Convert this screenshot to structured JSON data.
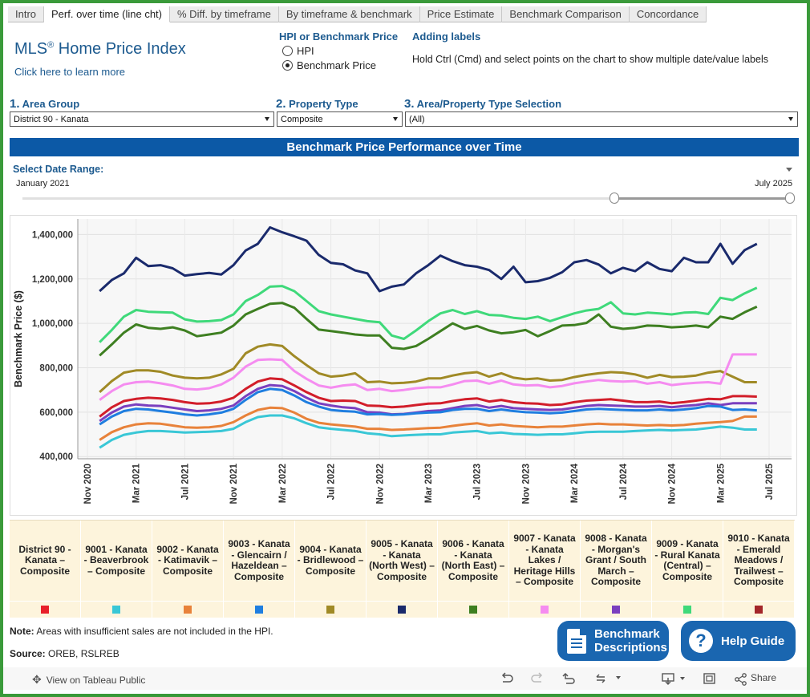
{
  "tabs": [
    {
      "label": "Intro",
      "active": false
    },
    {
      "label": "Perf. over time (line cht)",
      "active": true
    },
    {
      "label": "% Diff. by timeframe",
      "active": false
    },
    {
      "label": "By timeframe & benchmark",
      "active": false
    },
    {
      "label": "Price Estimate",
      "active": false
    },
    {
      "label": "Benchmark Comparison",
      "active": false
    },
    {
      "label": "Concordance",
      "active": false
    }
  ],
  "brand": {
    "title": "MLS",
    "reg": "®",
    "title_rest": " Home Price Index",
    "learn_more": "Click here to learn more"
  },
  "measure": {
    "header": "HPI or Benchmark Price",
    "opt_hpi": "HPI",
    "opt_bench": "Benchmark Price",
    "selected": "Benchmark Price"
  },
  "labels_help": {
    "header": "Adding labels",
    "text": "Hold Ctrl (Cmd) and select points on the chart to show multiple date/value labels"
  },
  "filters": {
    "area": {
      "num": "1.",
      "label": " Area Group",
      "value": "District 90 - Kanata"
    },
    "ptype": {
      "num": "2.",
      "label": " Property Type",
      "value": "Composite"
    },
    "sel": {
      "num": "3.",
      "label": " Area/Property Type Selection",
      "value": "(All)"
    }
  },
  "banner": "Benchmark Price Performance over Time",
  "date_range": {
    "label": "Select Date Range:",
    "start": "January 2021",
    "end": "July 2025"
  },
  "chart_data": {
    "type": "line",
    "title": "Benchmark Price Performance over Time",
    "ylabel": "Benchmark Price ($)",
    "xlabel": "",
    "ylim": [
      390000,
      1470000
    ],
    "yticks": [
      400000,
      600000,
      800000,
      1000000,
      1200000,
      1400000
    ],
    "ytick_labels": [
      "400,000",
      "600,000",
      "800,000",
      "1,000,000",
      "1,200,000",
      "1,400,000"
    ],
    "xtick_labels": [
      "Nov 2020",
      "Mar 2021",
      "Jul 2021",
      "Nov 2021",
      "Mar 2022",
      "Jul 2022",
      "Nov 2022",
      "Mar 2023",
      "Jul 2023",
      "Nov 2023",
      "Mar 2024",
      "Jul 2024",
      "Nov 2024",
      "Mar 2025",
      "Jul 2025"
    ],
    "xtick_months": [
      0,
      4,
      8,
      12,
      16,
      20,
      24,
      28,
      32,
      36,
      40,
      44,
      48,
      52,
      56
    ],
    "x_start": "2020-11",
    "months": 57,
    "series_months_start": 1,
    "series": [
      {
        "name": "9005 - Kanata - Kanata (North West) – Composite",
        "color": "#1a2a6c",
        "values": [
          1145000,
          1195000,
          1225000,
          1295000,
          1258000,
          1262000,
          1248000,
          1215000,
          1222000,
          1227000,
          1220000,
          1262000,
          1328000,
          1358000,
          1432000,
          1410000,
          1392000,
          1372000,
          1308000,
          1272000,
          1266000,
          1238000,
          1225000,
          1145000,
          1165000,
          1175000,
          1225000,
          1262000,
          1305000,
          1280000,
          1262000,
          1255000,
          1240000,
          1200000,
          1255000,
          1185000,
          1190000,
          1205000,
          1230000,
          1275000,
          1285000,
          1265000,
          1225000,
          1250000,
          1235000,
          1275000,
          1245000,
          1235000,
          1295000,
          1275000,
          1275000,
          1358000,
          1268000,
          1330000,
          1358000
        ]
      },
      {
        "name": "9009 - Kanata - Rural Kanata (Central) – Composite",
        "color": "#3fd97a",
        "values": [
          915000,
          970000,
          1030000,
          1060000,
          1052000,
          1050000,
          1048000,
          1018000,
          1008000,
          1010000,
          1015000,
          1040000,
          1100000,
          1128000,
          1165000,
          1168000,
          1145000,
          1100000,
          1055000,
          1040000,
          1030000,
          1020000,
          1010000,
          1005000,
          945000,
          930000,
          968000,
          1010000,
          1045000,
          1060000,
          1042000,
          1055000,
          1038000,
          1035000,
          1025000,
          1020000,
          1030000,
          1010000,
          1028000,
          1045000,
          1058000,
          1065000,
          1095000,
          1045000,
          1040000,
          1048000,
          1045000,
          1040000,
          1048000,
          1050000,
          1042000,
          1115000,
          1105000,
          1135000,
          1160000
        ]
      },
      {
        "name": "9006 - Kanata - Kanata (North East) – Composite",
        "color": "#3e7f21",
        "values": [
          855000,
          905000,
          958000,
          995000,
          980000,
          975000,
          982000,
          968000,
          942000,
          950000,
          958000,
          990000,
          1040000,
          1065000,
          1088000,
          1092000,
          1070000,
          1020000,
          972000,
          965000,
          958000,
          950000,
          945000,
          945000,
          890000,
          885000,
          898000,
          930000,
          965000,
          1000000,
          975000,
          988000,
          968000,
          955000,
          960000,
          970000,
          942000,
          965000,
          990000,
          992000,
          1002000,
          1040000,
          985000,
          975000,
          980000,
          990000,
          988000,
          982000,
          985000,
          990000,
          982000,
          1030000,
          1020000,
          1050000,
          1075000
        ]
      },
      {
        "name": "9004 - Kanata - Bridlewood – Composite",
        "color": "#a08a26",
        "values": [
          690000,
          740000,
          778000,
          788000,
          788000,
          782000,
          765000,
          755000,
          752000,
          755000,
          770000,
          795000,
          865000,
          895000,
          905000,
          898000,
          852000,
          812000,
          775000,
          760000,
          765000,
          775000,
          735000,
          738000,
          730000,
          732000,
          738000,
          752000,
          752000,
          765000,
          775000,
          780000,
          760000,
          775000,
          755000,
          748000,
          752000,
          742000,
          745000,
          758000,
          768000,
          775000,
          780000,
          778000,
          770000,
          755000,
          768000,
          758000,
          760000,
          765000,
          778000,
          785000,
          760000,
          735000,
          735000
        ]
      },
      {
        "name": "9007 - Kanata - Kanata Lakes / Heritage Hills – Composite",
        "color": "#f58cf0",
        "values": [
          655000,
          695000,
          725000,
          735000,
          738000,
          730000,
          720000,
          705000,
          702000,
          708000,
          725000,
          755000,
          805000,
          835000,
          838000,
          835000,
          785000,
          750000,
          720000,
          710000,
          720000,
          725000,
          700000,
          705000,
          695000,
          700000,
          708000,
          712000,
          712000,
          725000,
          740000,
          742000,
          728000,
          742000,
          725000,
          720000,
          722000,
          712000,
          718000,
          730000,
          738000,
          745000,
          740000,
          738000,
          740000,
          728000,
          735000,
          722000,
          728000,
          732000,
          735000,
          728000,
          860000,
          860000,
          860000
        ]
      },
      {
        "name": "9010 - Kanata - Emerald Meadows / Trailwest – Composite",
        "color": "#d21e2a",
        "values": [
          580000,
          622000,
          650000,
          660000,
          665000,
          662000,
          655000,
          645000,
          638000,
          640000,
          648000,
          665000,
          705000,
          738000,
          752000,
          748000,
          720000,
          690000,
          665000,
          650000,
          652000,
          650000,
          630000,
          628000,
          622000,
          625000,
          632000,
          638000,
          640000,
          650000,
          658000,
          662000,
          648000,
          655000,
          645000,
          640000,
          638000,
          632000,
          635000,
          645000,
          652000,
          655000,
          658000,
          652000,
          645000,
          645000,
          648000,
          640000,
          645000,
          652000,
          660000,
          658000,
          672000,
          672000,
          670000
        ]
      },
      {
        "name": "9008 - Kanata - Morgan's Grant / South March – Composite",
        "color": "#7a3fbf",
        "values": [
          560000,
          598000,
          625000,
          635000,
          630000,
          628000,
          620000,
          612000,
          605000,
          608000,
          615000,
          630000,
          672000,
          705000,
          722000,
          718000,
          695000,
          665000,
          640000,
          630000,
          622000,
          618000,
          600000,
          598000,
          590000,
          592000,
          598000,
          605000,
          608000,
          618000,
          628000,
          632000,
          620000,
          628000,
          618000,
          615000,
          612000,
          610000,
          612000,
          620000,
          628000,
          632000,
          630000,
          628000,
          625000,
          625000,
          628000,
          622000,
          628000,
          632000,
          640000,
          632000,
          640000,
          640000,
          640000
        ]
      },
      {
        "name": "9003 - Kanata - Glencairn / Hazeldean – Composite",
        "color": "#1f7ee0",
        "values": [
          545000,
          580000,
          605000,
          615000,
          612000,
          605000,
          598000,
          590000,
          585000,
          590000,
          598000,
          615000,
          655000,
          690000,
          705000,
          700000,
          675000,
          645000,
          625000,
          610000,
          605000,
          602000,
          590000,
          592000,
          588000,
          590000,
          595000,
          598000,
          600000,
          610000,
          615000,
          615000,
          605000,
          612000,
          605000,
          600000,
          598000,
          595000,
          598000,
          605000,
          612000,
          615000,
          612000,
          610000,
          608000,
          608000,
          612000,
          608000,
          612000,
          618000,
          628000,
          625000,
          610000,
          612000,
          608000
        ]
      },
      {
        "name": "9002 - Kanata - Katimavik – Composite",
        "color": "#e8823a",
        "values": [
          475000,
          510000,
          532000,
          545000,
          550000,
          548000,
          540000,
          532000,
          530000,
          532000,
          538000,
          555000,
          585000,
          610000,
          620000,
          618000,
          598000,
          570000,
          552000,
          545000,
          540000,
          535000,
          525000,
          525000,
          520000,
          522000,
          525000,
          528000,
          530000,
          538000,
          545000,
          550000,
          540000,
          545000,
          538000,
          535000,
          532000,
          535000,
          535000,
          540000,
          545000,
          548000,
          545000,
          545000,
          542000,
          540000,
          542000,
          540000,
          542000,
          548000,
          552000,
          555000,
          560000,
          580000,
          580000
        ]
      },
      {
        "name": "9001 - Kanata - Beaverbrook – Composite",
        "color": "#39c7d6",
        "values": [
          440000,
          475000,
          498000,
          508000,
          515000,
          515000,
          512000,
          508000,
          510000,
          512000,
          515000,
          525000,
          555000,
          578000,
          585000,
          585000,
          572000,
          550000,
          532000,
          525000,
          520000,
          515000,
          505000,
          500000,
          492000,
          495000,
          498000,
          500000,
          500000,
          508000,
          512000,
          515000,
          505000,
          508000,
          502000,
          500000,
          498000,
          500000,
          500000,
          505000,
          510000,
          512000,
          512000,
          512000,
          515000,
          518000,
          520000,
          518000,
          520000,
          522000,
          528000,
          535000,
          530000,
          522000,
          522000
        ]
      }
    ]
  },
  "legend": [
    {
      "label": "District 90 - Kanata – Composite",
      "color": "#e8202a"
    },
    {
      "label": "9001 - Kanata - Beaverbrook – Composite",
      "color": "#39c7d6"
    },
    {
      "label": "9002 - Kanata - Katimavik – Composite",
      "color": "#e8823a"
    },
    {
      "label": "9003 - Kanata - Glencairn / Hazeldean – Composite",
      "color": "#1f7ee0"
    },
    {
      "label": "9004 - Kanata - Bridlewood – Composite",
      "color": "#a08a26"
    },
    {
      "label": "9005 - Kanata - Kanata (North West) – Composite",
      "color": "#1a2a6c"
    },
    {
      "label": "9006 - Kanata - Kanata (North East) – Composite",
      "color": "#3e7f21"
    },
    {
      "label": "9007 - Kanata - Kanata Lakes / Heritage Hills – Composite",
      "color": "#f58cf0"
    },
    {
      "label": "9008 - Kanata - Morgan's Grant / South March – Composite",
      "color": "#7a3fbf"
    },
    {
      "label": "9009 - Kanata - Rural Kanata (Central) – Composite",
      "color": "#3fd97a"
    },
    {
      "label": "9010 - Kanata - Emerald Meadows / Trailwest – Composite",
      "color": "#a3262a"
    }
  ],
  "note": {
    "bold": "Note:",
    "text": " Areas with insufficient sales are not included in the HPI."
  },
  "source": {
    "bold": "Source:",
    "text": " OREB, RSLREB"
  },
  "buttons": {
    "bench_line1": "Benchmark",
    "bench_line2": "Descriptions",
    "help": "Help Guide",
    "help_icon_glyph": "?"
  },
  "footer": {
    "tableau": "View on Tableau Public",
    "share": "Share",
    "tableau_icon": "✥",
    "share_icon": "⋄"
  },
  "icons": {
    "undo": "undo-icon",
    "redo": "redo-icon",
    "revert": "revert-icon",
    "refresh": "refresh-icon",
    "download": "download-icon",
    "fullscreen": "fullscreen-icon"
  },
  "theme": {
    "accent": "#1c5a8f",
    "banner": "#0c59a6",
    "frame": "#3a9a3a",
    "legend_bg": "#fdf4dc"
  }
}
